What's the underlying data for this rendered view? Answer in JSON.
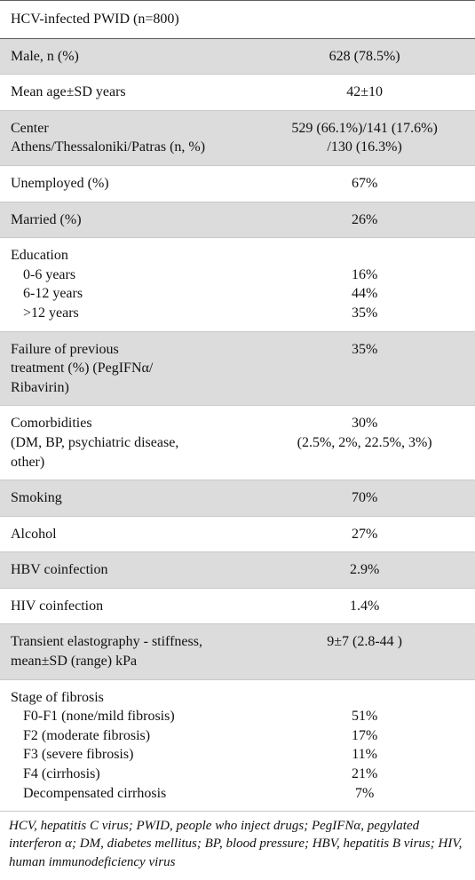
{
  "table": {
    "title": "HCV-infected PWID (n=800)",
    "rows": [
      {
        "alt": true,
        "label": "Male, n (%)",
        "value": "628 (78.5%)"
      },
      {
        "alt": false,
        "label": "Mean age±SD years",
        "value": "42±10"
      },
      {
        "alt": true,
        "labelLines": [
          "Center",
          "Athens/Thessaloniki/Patras (n, %)"
        ],
        "valueLines": [
          "529 (66.1%)/141 (17.6%)",
          "/130 (16.3%)"
        ]
      },
      {
        "alt": false,
        "label": "Unemployed (%)",
        "value": "67%"
      },
      {
        "alt": true,
        "label": "Married (%)",
        "value": "26%"
      },
      {
        "alt": false,
        "labelLines": [
          "Education"
        ],
        "subItems": [
          {
            "label": "0-6 years",
            "value": "16%"
          },
          {
            "label": "6-12 years",
            "value": "44%"
          },
          {
            "label": ">12 years",
            "value": "35%"
          }
        ]
      },
      {
        "alt": true,
        "labelLines": [
          "Failure of previous",
          "treatment (%) (PegIFNα/",
          "Ribavirin)"
        ],
        "value": "35%"
      },
      {
        "alt": false,
        "labelLines": [
          "Comorbidities",
          "(DM, BP, psychiatric disease,",
          "other)"
        ],
        "valueLines": [
          "30%",
          "(2.5%, 2%, 22.5%, 3%)"
        ]
      },
      {
        "alt": true,
        "label": "Smoking",
        "value": "70%"
      },
      {
        "alt": false,
        "label": "Alcohol",
        "value": "27%"
      },
      {
        "alt": true,
        "label": "HBV coinfection",
        "value": "2.9%"
      },
      {
        "alt": false,
        "label": "HIV coinfection",
        "value": "1.4%"
      },
      {
        "alt": true,
        "labelLines": [
          "Transient elastography - stiffness,",
          "mean±SD (range) kPa"
        ],
        "value": "9±7 (2.8-44 )"
      },
      {
        "alt": false,
        "labelLines": [
          "Stage of fibrosis"
        ],
        "subItems": [
          {
            "label": "F0-F1 (none/mild fibrosis)",
            "value": "51%"
          },
          {
            "label": "F2 (moderate fibrosis)",
            "value": "17%"
          },
          {
            "label": "F3 (severe fibrosis)",
            "value": "11%"
          },
          {
            "label": "F4 (cirrhosis)",
            "value": "21%"
          },
          {
            "label": "Decompensated cirrhosis",
            "value": "7%"
          }
        ]
      }
    ],
    "footnote": "HCV, hepatitis C virus; PWID, people who inject drugs; PegIFNα, pegylated interferon α; DM, diabetes mellitus; BP, blood pressure; HBV, hepatitis B virus; HIV, human immunodeficiency virus"
  }
}
